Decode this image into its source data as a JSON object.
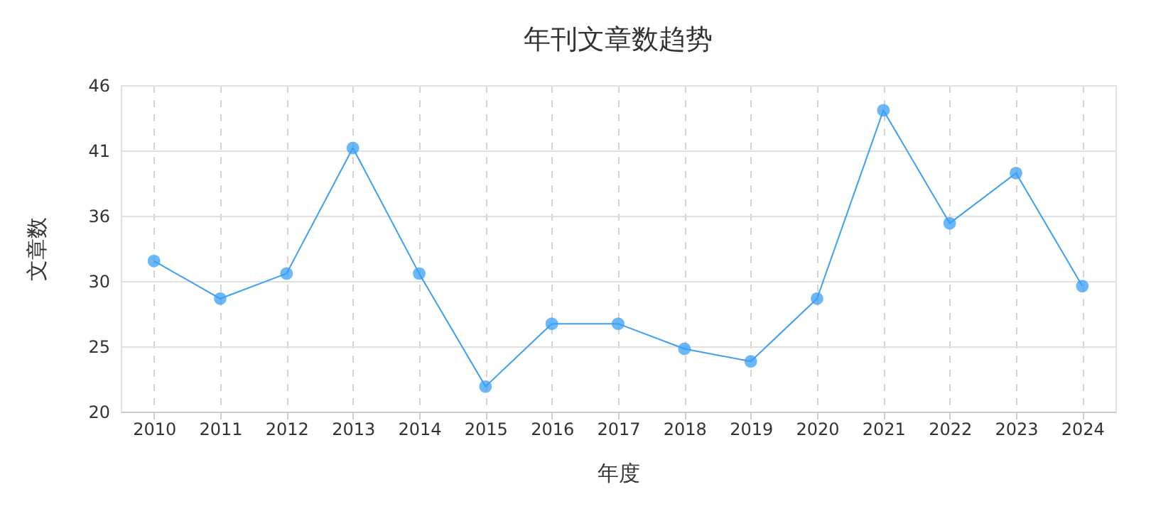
{
  "chart_data": {
    "type": "line",
    "title": "年刊文章数趋势",
    "xlabel": "年度",
    "ylabel": "文章数",
    "categories": [
      "2010",
      "2011",
      "2012",
      "2013",
      "2014",
      "2015",
      "2016",
      "2017",
      "2018",
      "2019",
      "2020",
      "2021",
      "2022",
      "2023",
      "2024"
    ],
    "series": [
      {
        "color": "#3a9ff5",
        "values": [
          32,
          29,
          31,
          41,
          31,
          22,
          27,
          27,
          25,
          24,
          29,
          44,
          35,
          39,
          30
        ]
      }
    ],
    "ylim": [
      20,
      46
    ],
    "yticks": [
      20,
      {
        "value": 25.2,
        "label": "25"
      },
      {
        "value": 30.4,
        "label": "30"
      },
      {
        "value": 35.6,
        "label": "36"
      },
      {
        "value": 40.8,
        "label": "41"
      },
      46
    ],
    "grid": true,
    "marker": "circle",
    "line_style": "solid"
  }
}
